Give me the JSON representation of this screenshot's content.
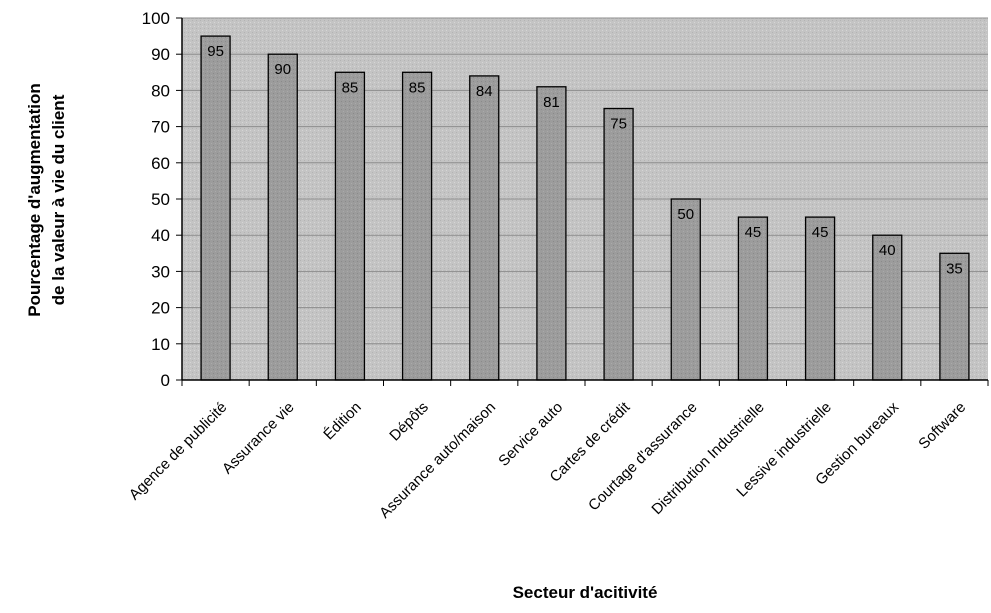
{
  "chart_data": {
    "type": "bar",
    "title": "",
    "xlabel": "Secteur d'acitivité",
    "ylabel_lines": [
      "Pourcentage d'augmentation",
      "de la valeur à vie du client"
    ],
    "ylim": [
      0,
      100
    ],
    "yticks": [
      0,
      10,
      20,
      30,
      40,
      50,
      60,
      70,
      80,
      90,
      100
    ],
    "grid": true,
    "categories": [
      "Agence de publicité",
      "Assurance vie",
      "Édition",
      "Dépôts",
      "Assurance auto/maison",
      "Service auto",
      "Cartes de crédit",
      "Courtage d'assurance",
      "Distribution Industrielle",
      "Lessive industrielle",
      "Gestion bureaux",
      "Software"
    ],
    "values": [
      95,
      90,
      85,
      85,
      84,
      81,
      75,
      50,
      45,
      45,
      40,
      35
    ],
    "colors": {
      "plot_bg": "#c8c8c8",
      "bar": "#9a9a9a",
      "grid": "#8c8c8c",
      "axis": "#000000"
    }
  }
}
